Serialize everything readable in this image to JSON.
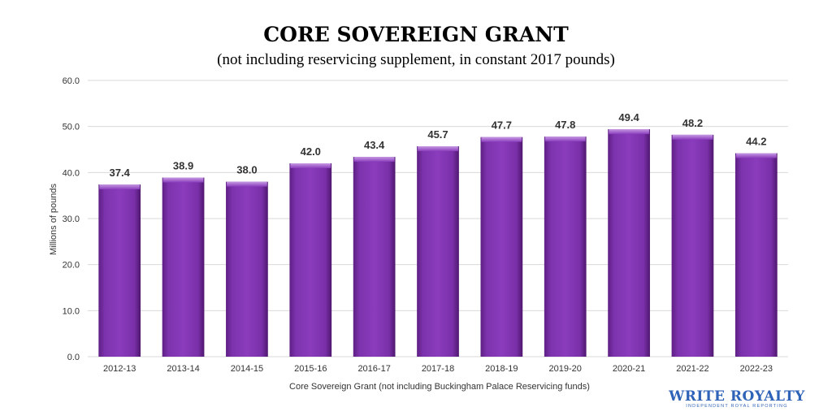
{
  "chart_data": {
    "type": "bar",
    "title": "CORE SOVEREIGN GRANT",
    "subtitle": "(not including reservicing supplement, in constant 2017 pounds)",
    "xlabel": "Core Sovereign  Grant (not including Buckingham Palace Reservicing funds)",
    "ylabel": "Millions of pounds",
    "ylim": [
      0,
      60
    ],
    "yticks": [
      "0.0",
      "10.0",
      "20.0",
      "30.0",
      "40.0",
      "50.0",
      "60.0"
    ],
    "grid": true,
    "categories": [
      "2012-13",
      "2013-14",
      "2014-15",
      "2015-16",
      "2016-17",
      "2017-18",
      "2018-19",
      "2019-20",
      "2020-21",
      "2021-22",
      "2022-23"
    ],
    "values": [
      37.4,
      38.9,
      38.0,
      42.0,
      43.4,
      45.7,
      47.7,
      47.8,
      49.4,
      48.2,
      44.2
    ],
    "data_labels": [
      "37.4",
      "38.9",
      "38.0",
      "42.0",
      "43.4",
      "45.7",
      "47.7",
      "47.8",
      "49.4",
      "48.2",
      "44.2"
    ],
    "bar_color": "#7b2fa8"
  },
  "logo": {
    "name": "WRITE ROYALTY",
    "tagline": "INDEPENDENT ROYAL REPORTING"
  }
}
